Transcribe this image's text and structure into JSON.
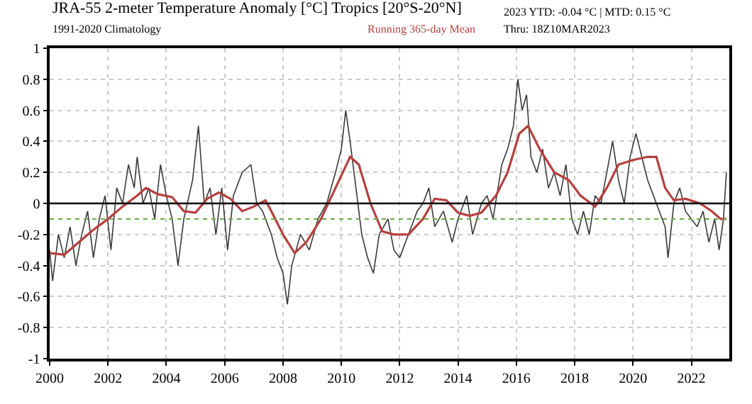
{
  "chart_data": {
    "type": "line",
    "title": "JRA-55 2-meter Temperature Anomaly [°C] Tropics [20°S-20°N]",
    "subtitle": "1991-2020 Climatology",
    "annotations": [
      "2023 YTD: -0.04 °C | MTD: 0.15 °C",
      "Thru: 18Z10MAR2023"
    ],
    "xlim": [
      2000,
      2023.3
    ],
    "xticks": [
      2000,
      2002,
      2004,
      2006,
      2008,
      2010,
      2012,
      2014,
      2016,
      2018,
      2020,
      2022
    ],
    "ylim": [
      -1,
      1
    ],
    "yticks": [
      -1,
      -0.8,
      -0.6,
      -0.4,
      -0.2,
      0,
      0.2,
      0.4,
      0.6,
      0.8,
      1
    ],
    "grid": true,
    "legend": false,
    "marker": "none",
    "ref_lines": [
      {
        "axis": "y",
        "value": 0,
        "color": "#000000",
        "line_style": "solid"
      },
      {
        "axis": "y",
        "value": -0.1,
        "color": "#6aaa4a",
        "line_style": "dotted"
      }
    ],
    "series": [
      {
        "color": "#3a3a3a",
        "x": [
          2000.0,
          2000.1,
          2000.3,
          2000.5,
          2000.7,
          2000.9,
          2001.1,
          2001.3,
          2001.5,
          2001.7,
          2001.9,
          2002.1,
          2002.3,
          2002.5,
          2002.7,
          2002.9,
          2003.0,
          2003.2,
          2003.4,
          2003.6,
          2003.8,
          2004.0,
          2004.2,
          2004.4,
          2004.6,
          2004.9,
          2005.1,
          2005.3,
          2005.5,
          2005.7,
          2005.9,
          2006.1,
          2006.3,
          2006.6,
          2006.9,
          2007.1,
          2007.3,
          2007.6,
          2007.8,
          2008.0,
          2008.15,
          2008.3,
          2008.6,
          2008.9,
          2009.2,
          2009.5,
          2009.8,
          2010.0,
          2010.15,
          2010.3,
          2010.5,
          2010.7,
          2010.9,
          2011.1,
          2011.3,
          2011.6,
          2011.8,
          2012.0,
          2012.3,
          2012.6,
          2012.8,
          2013.0,
          2013.2,
          2013.5,
          2013.8,
          2014.0,
          2014.3,
          2014.5,
          2014.8,
          2015.0,
          2015.2,
          2015.5,
          2015.7,
          2015.9,
          2016.05,
          2016.2,
          2016.35,
          2016.5,
          2016.7,
          2016.9,
          2017.1,
          2017.3,
          2017.5,
          2017.7,
          2017.9,
          2018.1,
          2018.3,
          2018.5,
          2018.7,
          2018.9,
          2019.1,
          2019.3,
          2019.5,
          2019.7,
          2019.9,
          2020.1,
          2020.3,
          2020.5,
          2020.7,
          2020.9,
          2021.1,
          2021.2,
          2021.4,
          2021.6,
          2021.8,
          2022.0,
          2022.2,
          2022.4,
          2022.6,
          2022.8,
          2022.95,
          2023.1,
          2023.2
        ],
        "values": [
          -0.3,
          -0.5,
          -0.2,
          -0.35,
          -0.15,
          -0.4,
          -0.2,
          -0.05,
          -0.35,
          -0.1,
          0.05,
          -0.3,
          0.1,
          0.0,
          0.25,
          0.1,
          0.3,
          0.0,
          0.1,
          -0.1,
          0.25,
          0.05,
          -0.1,
          -0.4,
          -0.1,
          0.15,
          0.5,
          0.0,
          0.1,
          -0.2,
          0.1,
          -0.3,
          0.05,
          0.2,
          0.25,
          0.0,
          -0.05,
          -0.2,
          -0.35,
          -0.45,
          -0.65,
          -0.4,
          -0.2,
          -0.3,
          -0.1,
          0.0,
          0.2,
          0.35,
          0.6,
          0.4,
          0.1,
          -0.2,
          -0.35,
          -0.45,
          -0.2,
          -0.1,
          -0.3,
          -0.35,
          -0.2,
          -0.05,
          0.0,
          0.1,
          -0.15,
          -0.05,
          -0.25,
          -0.1,
          0.05,
          -0.2,
          0.0,
          0.05,
          -0.1,
          0.25,
          0.35,
          0.5,
          0.8,
          0.6,
          0.7,
          0.3,
          0.2,
          0.35,
          0.1,
          0.2,
          0.05,
          0.25,
          -0.1,
          -0.2,
          -0.05,
          -0.2,
          0.05,
          0.0,
          0.2,
          0.4,
          0.15,
          0.0,
          0.3,
          0.45,
          0.3,
          0.15,
          0.05,
          -0.05,
          -0.15,
          -0.35,
          0.0,
          0.1,
          -0.05,
          -0.1,
          -0.15,
          -0.05,
          -0.25,
          -0.1,
          -0.3,
          -0.1,
          0.2
        ]
      },
      {
        "name": "Running 365-day Mean",
        "color": "#b5403e",
        "x": [
          2000.0,
          2000.5,
          2001.0,
          2001.5,
          2002.0,
          2002.5,
          2003.0,
          2003.3,
          2003.7,
          2004.2,
          2004.6,
          2005.0,
          2005.4,
          2005.8,
          2006.2,
          2006.6,
          2007.0,
          2007.4,
          2007.6,
          2008.0,
          2008.4,
          2008.8,
          2009.3,
          2009.8,
          2010.3,
          2010.6,
          2011.0,
          2011.4,
          2011.8,
          2012.3,
          2012.8,
          2013.2,
          2013.6,
          2014.0,
          2014.4,
          2014.8,
          2015.3,
          2015.7,
          2016.1,
          2016.4,
          2016.8,
          2017.3,
          2017.8,
          2018.2,
          2018.7,
          2019.1,
          2019.5,
          2020.0,
          2020.5,
          2020.8,
          2021.1,
          2021.4,
          2021.8,
          2022.3,
          2022.7,
          2023.0,
          2023.2
        ],
        "values": [
          -0.32,
          -0.33,
          -0.25,
          -0.17,
          -0.1,
          -0.02,
          0.05,
          0.1,
          0.06,
          0.04,
          -0.05,
          -0.06,
          0.03,
          0.07,
          0.03,
          -0.05,
          -0.02,
          0.02,
          -0.05,
          -0.2,
          -0.32,
          -0.25,
          -0.1,
          0.1,
          0.3,
          0.25,
          0.0,
          -0.18,
          -0.2,
          -0.2,
          -0.1,
          0.03,
          0.02,
          -0.06,
          -0.08,
          -0.06,
          0.05,
          0.2,
          0.45,
          0.5,
          0.35,
          0.2,
          0.15,
          0.05,
          -0.02,
          0.1,
          0.25,
          0.28,
          0.3,
          0.3,
          0.1,
          0.02,
          0.03,
          0.0,
          -0.05,
          -0.1,
          -0.1
        ]
      }
    ]
  }
}
